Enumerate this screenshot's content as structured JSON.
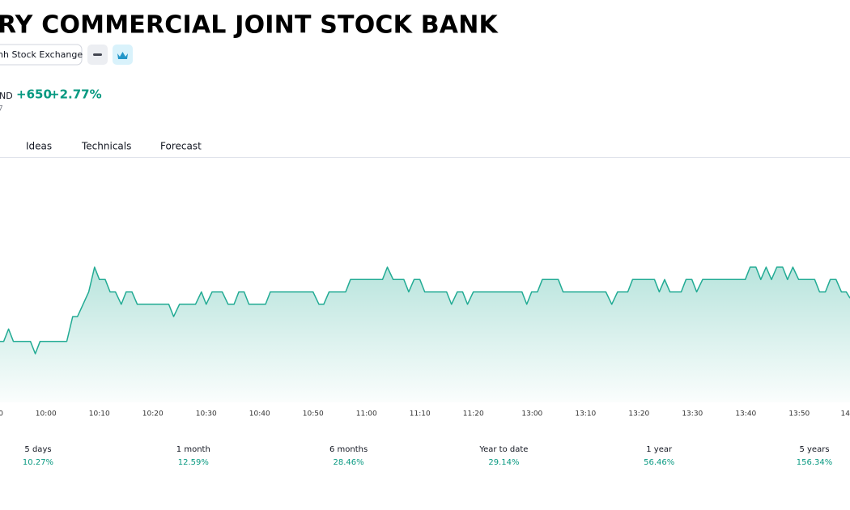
{
  "header": {
    "title": "RY COMMERCIAL JOINT STOCK BANK",
    "exchange": "nh Stock Exchange",
    "currency": "ND",
    "change": "+650",
    "change_percent": "+2.77%",
    "note": "7"
  },
  "tabs": [
    "Ideas",
    "Technicals",
    "Forecast"
  ],
  "chart_data": {
    "type": "area",
    "color": "#22ab94",
    "x": [
      -8.6,
      -7.9,
      -7.0,
      -6.1,
      -2.9,
      -2.0,
      -1.1,
      3.9,
      5.0,
      5.9,
      8.0,
      9.1,
      10.0,
      11.1,
      12.0,
      13.0,
      14.1,
      15.0,
      16.1,
      17.1,
      23.0,
      23.9,
      25.0,
      28.0,
      29.1,
      30.0,
      31.1,
      33.0,
      34.1,
      35.2,
      36.1,
      37.1,
      38.0,
      41.1,
      42.0,
      50.0,
      51.1,
      52.0,
      53.0,
      56.1,
      57.0,
      63.0,
      63.9,
      65.0,
      67.0,
      67.9,
      68.9,
      70.0,
      70.9,
      75.0,
      75.9,
      77.0,
      78.0,
      78.9,
      80.0,
      89.1,
      90.0,
      90.9,
      92.0,
      92.9,
      95.9,
      96.8,
      104.8,
      105.9,
      107.0,
      108.9,
      109.8,
      113.9,
      114.8,
      115.8,
      116.8,
      118.9,
      119.8,
      120.9,
      121.8,
      122.9,
      130.9,
      131.8,
      132.9,
      133.8,
      134.8,
      135.8,
      136.8,
      137.9,
      138.8,
      139.8,
      140.9,
      143.9,
      144.8,
      145.9,
      146.8,
      147.9,
      148.9,
      149.8,
      150.5
    ],
    "values": [
      23500,
      23500,
      23600,
      23500,
      23500,
      23400,
      23500,
      23500,
      23700,
      23700,
      23900,
      24100,
      24000,
      24000,
      23900,
      23900,
      23800,
      23900,
      23900,
      23800,
      23800,
      23700,
      23800,
      23800,
      23900,
      23800,
      23900,
      23900,
      23800,
      23800,
      23900,
      23900,
      23800,
      23800,
      23900,
      23900,
      23800,
      23800,
      23900,
      23900,
      24000,
      24000,
      24100,
      24000,
      24000,
      23900,
      24000,
      24000,
      23900,
      23900,
      23800,
      23900,
      23900,
      23800,
      23900,
      23900,
      23800,
      23900,
      23900,
      24000,
      24000,
      23900,
      23900,
      23800,
      23900,
      23900,
      24000,
      24000,
      23900,
      24000,
      23900,
      23900,
      24000,
      24000,
      23900,
      24000,
      24000,
      24100,
      24100,
      24000,
      24100,
      24000,
      24100,
      24100,
      24000,
      24100,
      24000,
      24000,
      23900,
      23900,
      24000,
      24000,
      23900,
      23900,
      23850
    ],
    "xlim": [
      -8.6,
      150.5
    ],
    "xticks": [
      {
        "value": -9,
        "label": "0"
      },
      {
        "value": 0,
        "label": "10:00"
      },
      {
        "value": 10,
        "label": "10:10"
      },
      {
        "value": 20,
        "label": "10:20"
      },
      {
        "value": 30,
        "label": "10:30"
      },
      {
        "value": 40,
        "label": "10:40"
      },
      {
        "value": 50,
        "label": "10:50"
      },
      {
        "value": 60,
        "label": "11:00"
      },
      {
        "value": 70,
        "label": "11:10"
      },
      {
        "value": 80,
        "label": "11:20"
      },
      {
        "value": 91,
        "label": "13:00"
      },
      {
        "value": 101,
        "label": "13:10"
      },
      {
        "value": 111,
        "label": "13:20"
      },
      {
        "value": 121,
        "label": "13:30"
      },
      {
        "value": 131,
        "label": "13:40"
      },
      {
        "value": 141,
        "label": "13:50"
      },
      {
        "value": 151,
        "label": "14"
      }
    ]
  },
  "performance": [
    {
      "period": "5 days",
      "change": "10.27%"
    },
    {
      "period": "1 month",
      "change": "12.59%"
    },
    {
      "period": "6 months",
      "change": "28.46%"
    },
    {
      "period": "Year to date",
      "change": "29.14%"
    },
    {
      "period": "1 year",
      "change": "56.46%"
    },
    {
      "period": "5 years",
      "change": "156.34%"
    }
  ]
}
